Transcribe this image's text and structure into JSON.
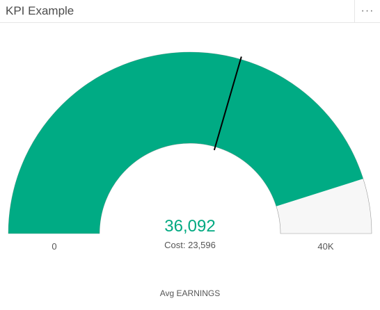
{
  "widget": {
    "title": "KPI Example",
    "menu_icon": "more-horizontal-icon",
    "menu_glyph": "···"
  },
  "gauge": {
    "value": 36092,
    "value_label": "36,092",
    "target": 23596,
    "secondary_label": "Cost: 23,596",
    "min": 0,
    "max": 40000,
    "min_label": "0",
    "max_label": "40K",
    "field_label": "Avg EARNINGS",
    "fill_color": "#00ab84",
    "track_color": "#f7f7f7",
    "value_text_color": "#00a981"
  }
}
